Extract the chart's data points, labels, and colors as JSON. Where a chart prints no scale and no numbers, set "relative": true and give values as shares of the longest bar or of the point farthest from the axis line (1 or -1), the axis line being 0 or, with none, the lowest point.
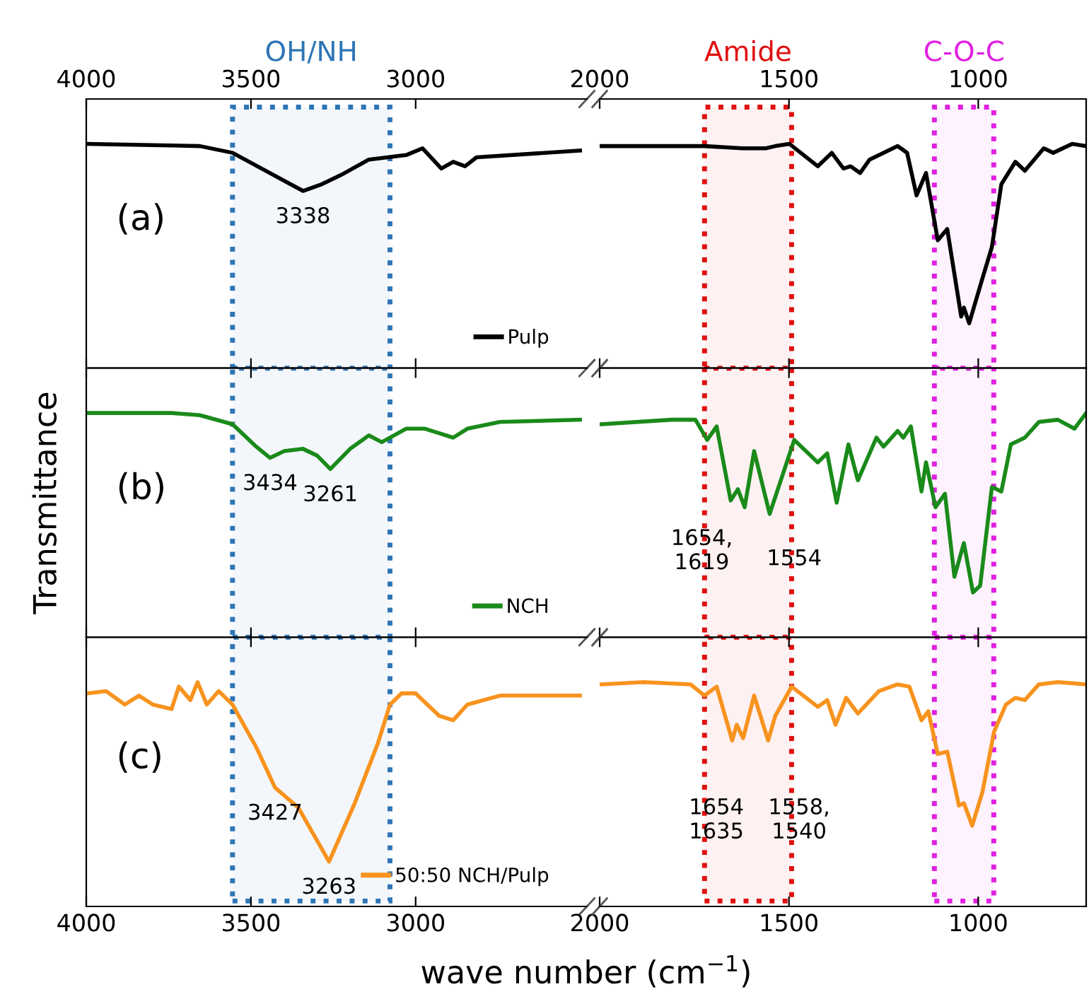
{
  "chart_data": [
    {
      "type": "line",
      "relative": true,
      "legend": "bottom",
      "tick_labels": "x",
      "xlim": [
        4000,
        2480
      ],
      "xticks": [
        4000,
        3500,
        3000
      ],
      "bands": [
        {
          "axis": "x",
          "from": 3556,
          "to": 3078,
          "label": "OH/NH",
          "color": "#2e75b6"
        }
      ],
      "annotations": [
        "(a)",
        {
          "text": "3338",
          "x": 3342,
          "y": 0.79
        }
      ],
      "series": [
        {
          "name": "Pulp",
          "color": "#000000",
          "x": [
            3997,
            3655,
            3556,
            3342,
            3285,
            3228,
            3142,
            3029,
            2979,
            2922,
            2886,
            2850,
            2815,
            2501
          ],
          "values": [
            1.0,
            0.99,
            0.96,
            0.79,
            0.82,
            0.86,
            0.93,
            0.95,
            0.98,
            0.89,
            0.92,
            0.9,
            0.94,
            0.97
          ]
        }
      ]
    },
    {
      "type": "line",
      "relative": true,
      "tick_labels": "x",
      "xlim": [
        2000,
        715
      ],
      "xticks": [
        2000,
        1500,
        1000
      ],
      "bands": [
        {
          "axis": "x",
          "from": 1723,
          "to": 1493,
          "label": "Amide",
          "color": "#e01010"
        },
        {
          "axis": "x",
          "from": 1116,
          "to": 959,
          "label": "C-O-C",
          "color": "#e020e0"
        }
      ],
      "series": [
        {
          "color": "#000000",
          "x": [
            1996,
            1723,
            1623,
            1561,
            1536,
            1499,
            1424,
            1387,
            1356,
            1337,
            1312,
            1287,
            1213,
            1188,
            1163,
            1138,
            1107,
            1082,
            1045,
            1038,
            1024,
            989,
            964,
            939,
            902,
            877,
            827,
            802,
            752,
            715
          ],
          "values": [
            0.99,
            0.99,
            0.98,
            0.98,
            0.99,
            1.0,
            0.9,
            0.96,
            0.89,
            0.9,
            0.87,
            0.93,
            0.99,
            0.96,
            0.77,
            0.87,
            0.57,
            0.62,
            0.23,
            0.27,
            0.2,
            0.4,
            0.54,
            0.82,
            0.92,
            0.88,
            0.98,
            0.96,
            1.0,
            0.99
          ]
        }
      ]
    },
    {
      "type": "line",
      "relative": true,
      "legend": "bottom",
      "tick_labels": false,
      "ylabel": "Transmittance",
      "xlim": [
        4000,
        2480
      ],
      "xticks": [
        4000,
        3500,
        3000
      ],
      "bands": [
        {
          "axis": "x",
          "from": 3556,
          "to": 3078,
          "color": "#2e75b6"
        }
      ],
      "annotations": [
        "(b)",
        {
          "text": "3434",
          "x": 3442,
          "y": 0.8
        },
        {
          "text": "3261",
          "x": 3259,
          "y": 0.75
        }
      ],
      "series": [
        {
          "name": "NCH",
          "color": "#1a8a1a",
          "x": [
            3997,
            3741,
            3655,
            3556,
            3484,
            3442,
            3399,
            3342,
            3299,
            3259,
            3199,
            3142,
            3103,
            3029,
            2972,
            2929,
            2886,
            2843,
            2744,
            2501
          ],
          "values": [
            1.0,
            1.0,
            0.99,
            0.95,
            0.85,
            0.8,
            0.83,
            0.84,
            0.81,
            0.75,
            0.84,
            0.9,
            0.87,
            0.93,
            0.93,
            0.91,
            0.89,
            0.93,
            0.96,
            0.97
          ]
        }
      ]
    },
    {
      "type": "line",
      "relative": true,
      "tick_labels": false,
      "xlim": [
        2000,
        715
      ],
      "xticks": [
        2000,
        1500,
        1000
      ],
      "bands": [
        {
          "axis": "x",
          "from": 1723,
          "to": 1493,
          "color": "#e01010"
        },
        {
          "axis": "x",
          "from": 1116,
          "to": 959,
          "color": "#e020e0"
        }
      ],
      "annotations": [
        "1654,\n1619",
        "1554"
      ],
      "series": [
        {
          "color": "#1a8a1a",
          "x": [
            1996,
            1810,
            1747,
            1716,
            1691,
            1654,
            1635,
            1617,
            1592,
            1551,
            1486,
            1424,
            1399,
            1374,
            1343,
            1318,
            1269,
            1250,
            1213,
            1198,
            1178,
            1150,
            1138,
            1113,
            1088,
            1063,
            1038,
            1014,
            995,
            964,
            939,
            914,
            877,
            840,
            790,
            746,
            715
          ],
          "values": [
            0.95,
            0.97,
            0.97,
            0.88,
            0.94,
            0.61,
            0.66,
            0.58,
            0.83,
            0.55,
            0.88,
            0.78,
            0.82,
            0.6,
            0.86,
            0.7,
            0.89,
            0.85,
            0.92,
            0.89,
            0.94,
            0.65,
            0.78,
            0.58,
            0.64,
            0.27,
            0.42,
            0.2,
            0.23,
            0.67,
            0.65,
            0.86,
            0.89,
            0.96,
            0.97,
            0.93,
            1.0
          ]
        }
      ]
    },
    {
      "type": "line",
      "relative": true,
      "legend": "bottom",
      "tick_labels": "x",
      "xlabel": "wave number (cm$^{−1}$)",
      "xlim": [
        4000,
        2480
      ],
      "xticks": [
        4000,
        3500,
        3000
      ],
      "bands": [
        {
          "axis": "x",
          "from": 3556,
          "to": 3078,
          "color": "#2e75b6"
        }
      ],
      "annotations": [
        "(c)",
        {
          "text": "3427",
          "x": 3427,
          "y": 0.53
        },
        {
          "text": "3263",
          "x": 3263,
          "y": 0.2
        }
      ],
      "series": [
        {
          "name": "50:50 NCH/Pulp",
          "color": "#f7931e",
          "x": [
            3997,
            3940,
            3883,
            3840,
            3798,
            3741,
            3719,
            3684,
            3662,
            3634,
            3598,
            3556,
            3484,
            3427,
            3356,
            3263,
            3185,
            3114,
            3078,
            3043,
            3000,
            2929,
            2886,
            2843,
            2744,
            2501
          ],
          "values": [
            0.95,
            0.96,
            0.9,
            0.94,
            0.9,
            0.88,
            0.98,
            0.92,
            1.0,
            0.9,
            0.96,
            0.9,
            0.71,
            0.53,
            0.44,
            0.2,
            0.46,
            0.73,
            0.9,
            0.95,
            0.95,
            0.85,
            0.83,
            0.9,
            0.94,
            0.94
          ]
        }
      ]
    },
    {
      "type": "line",
      "relative": true,
      "tick_labels": "x",
      "xlim": [
        2000,
        715
      ],
      "xticks": [
        2000,
        1500,
        1000
      ],
      "bands": [
        {
          "axis": "x",
          "from": 1723,
          "to": 1493,
          "color": "#e01010"
        },
        {
          "axis": "x",
          "from": 1116,
          "to": 959,
          "color": "#e020e0"
        }
      ],
      "annotations": [
        "1654\n1635",
        "1558,\n1540"
      ],
      "series": [
        {
          "color": "#f7931e",
          "x": [
            1996,
            1884,
            1760,
            1723,
            1691,
            1650,
            1638,
            1621,
            1592,
            1555,
            1536,
            1493,
            1424,
            1399,
            1377,
            1349,
            1318,
            1262,
            1213,
            1182,
            1150,
            1132,
            1107,
            1082,
            1051,
            1038,
            1016,
            989,
            958,
            927,
            902,
            877,
            840,
            790,
            715
          ],
          "values": [
            0.99,
            1.0,
            0.99,
            0.94,
            0.98,
            0.74,
            0.81,
            0.75,
            0.94,
            0.74,
            0.85,
            0.98,
            0.89,
            0.92,
            0.81,
            0.93,
            0.86,
            0.96,
            0.99,
            0.98,
            0.83,
            0.87,
            0.68,
            0.69,
            0.45,
            0.46,
            0.36,
            0.51,
            0.78,
            0.9,
            0.93,
            0.92,
            0.99,
            1.0,
            0.99
          ]
        }
      ]
    }
  ]
}
